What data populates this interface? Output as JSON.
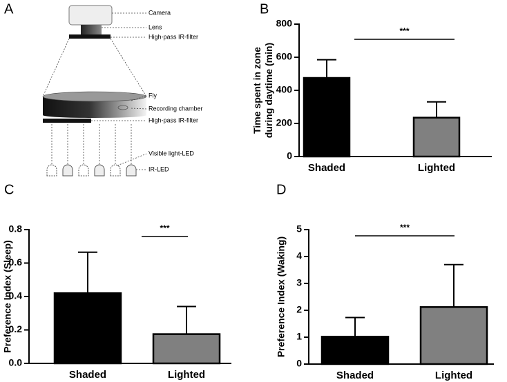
{
  "diagram": {
    "panel_label": "A",
    "labels": [
      "Camera",
      "Lens",
      "High-pass IR-filter",
      "Fly",
      "Recording chamber",
      "High-pass IR-filter",
      "Visible light-LED",
      "IR-LED"
    ]
  },
  "chart_data": [
    {
      "type": "bar",
      "panel_label": "B",
      "y_label": [
        "Time spent in zone",
        "during daytime (min)"
      ],
      "categories": [
        "Shaded",
        "Lighted"
      ],
      "series": [
        {
          "values": [
            475,
            235
          ],
          "errors": [
            110,
            95
          ],
          "colors": [
            "#000000",
            "#808080"
          ]
        }
      ],
      "ylim": [
        0,
        800
      ],
      "yticks": [
        0,
        200,
        400,
        600,
        800
      ],
      "annotation": "***"
    },
    {
      "type": "bar",
      "panel_label": "C",
      "y_label": [
        "Preference Index (Sleep)"
      ],
      "categories": [
        "Shaded",
        "Lighted"
      ],
      "series": [
        {
          "values": [
            0.42,
            0.175
          ],
          "errors": [
            0.245,
            0.165
          ],
          "colors": [
            "#000000",
            "#808080"
          ]
        }
      ],
      "ylim": [
        0,
        0.8
      ],
      "yticks": [
        {
          "value": 0,
          "label": "0.0"
        },
        0.2,
        0.4,
        0.6,
        0.8
      ],
      "annotation": "***"
    },
    {
      "type": "bar",
      "panel_label": "D",
      "y_label": [
        "Preference Index (Waking)"
      ],
      "categories": [
        "Shaded",
        "Lighted"
      ],
      "series": [
        {
          "values": [
            1.02,
            2.12
          ],
          "errors": [
            0.71,
            1.58
          ],
          "colors": [
            "#000000",
            "#808080"
          ]
        }
      ],
      "ylim": [
        0,
        5
      ],
      "yticks": [
        0,
        1,
        2,
        3,
        4,
        5
      ],
      "annotation": "***"
    }
  ]
}
